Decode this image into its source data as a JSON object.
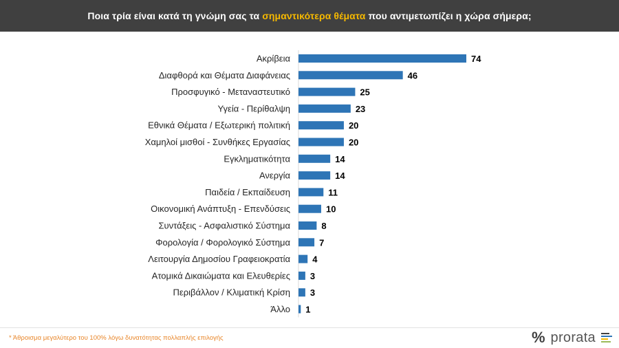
{
  "header": {
    "title_pre": "Ποια τρία είναι κατά τη γνώμη σας τα ",
    "title_highlight": "σημαντικότερα θέματα",
    "title_post": " που αντιμετωπίζει η χώρα σήμερα;"
  },
  "colors": {
    "header_bg": "#404040",
    "highlight": "#f5b800",
    "bar": "#2e75b6",
    "footnote": "#e8862a"
  },
  "chart_data": {
    "type": "bar",
    "orientation": "horizontal",
    "title": "Ποια τρία είναι κατά τη γνώμη σας τα σημαντικότερα θέματα που αντιμετωπίζει η χώρα σήμερα;",
    "categories": [
      "Ακρίβεια",
      "Διαφθορά και Θέματα Διαφάνειας",
      "Προσφυγικό - Μεταναστευτικό",
      "Υγεία - Περίθαλψη",
      "Εθνικά Θέματα / Εξωτερική πολιτική",
      "Χαμηλοί μισθοί - Συνθήκες Εργασίας",
      "Εγκληματικότητα",
      "Ανεργία",
      "Παιδεία / Εκπαίδευση",
      "Οικονομική Ανάπτυξη - Επενδύσεις",
      "Συντάξεις - Ασφαλιστικό Σύστημα",
      "Φορολογία / Φορολογικό Σύστημα",
      "Λειτουργία Δημοσίου  Γραφειοκρατία",
      "Ατομικά Δικαιώματα και Ελευθερίες",
      "Περιβάλλον / Κλιματική Κρίση",
      "Άλλο"
    ],
    "values": [
      74,
      46,
      25,
      23,
      20,
      20,
      14,
      14,
      11,
      10,
      8,
      7,
      4,
      3,
      3,
      1
    ],
    "xlim": [
      0,
      80
    ],
    "grid": false,
    "legend": "none",
    "data_labels": true
  },
  "footer": {
    "note": "* Άθροισμα μεγαλύτερο του 100% λόγω δυνατότητας πολλαπλής επιλογής",
    "logo_symbol": "%",
    "logo_text": "prorata",
    "logo_bar_colors": [
      "#404040",
      "#2e75b6",
      "#f5b800",
      "#9bbb59"
    ]
  }
}
